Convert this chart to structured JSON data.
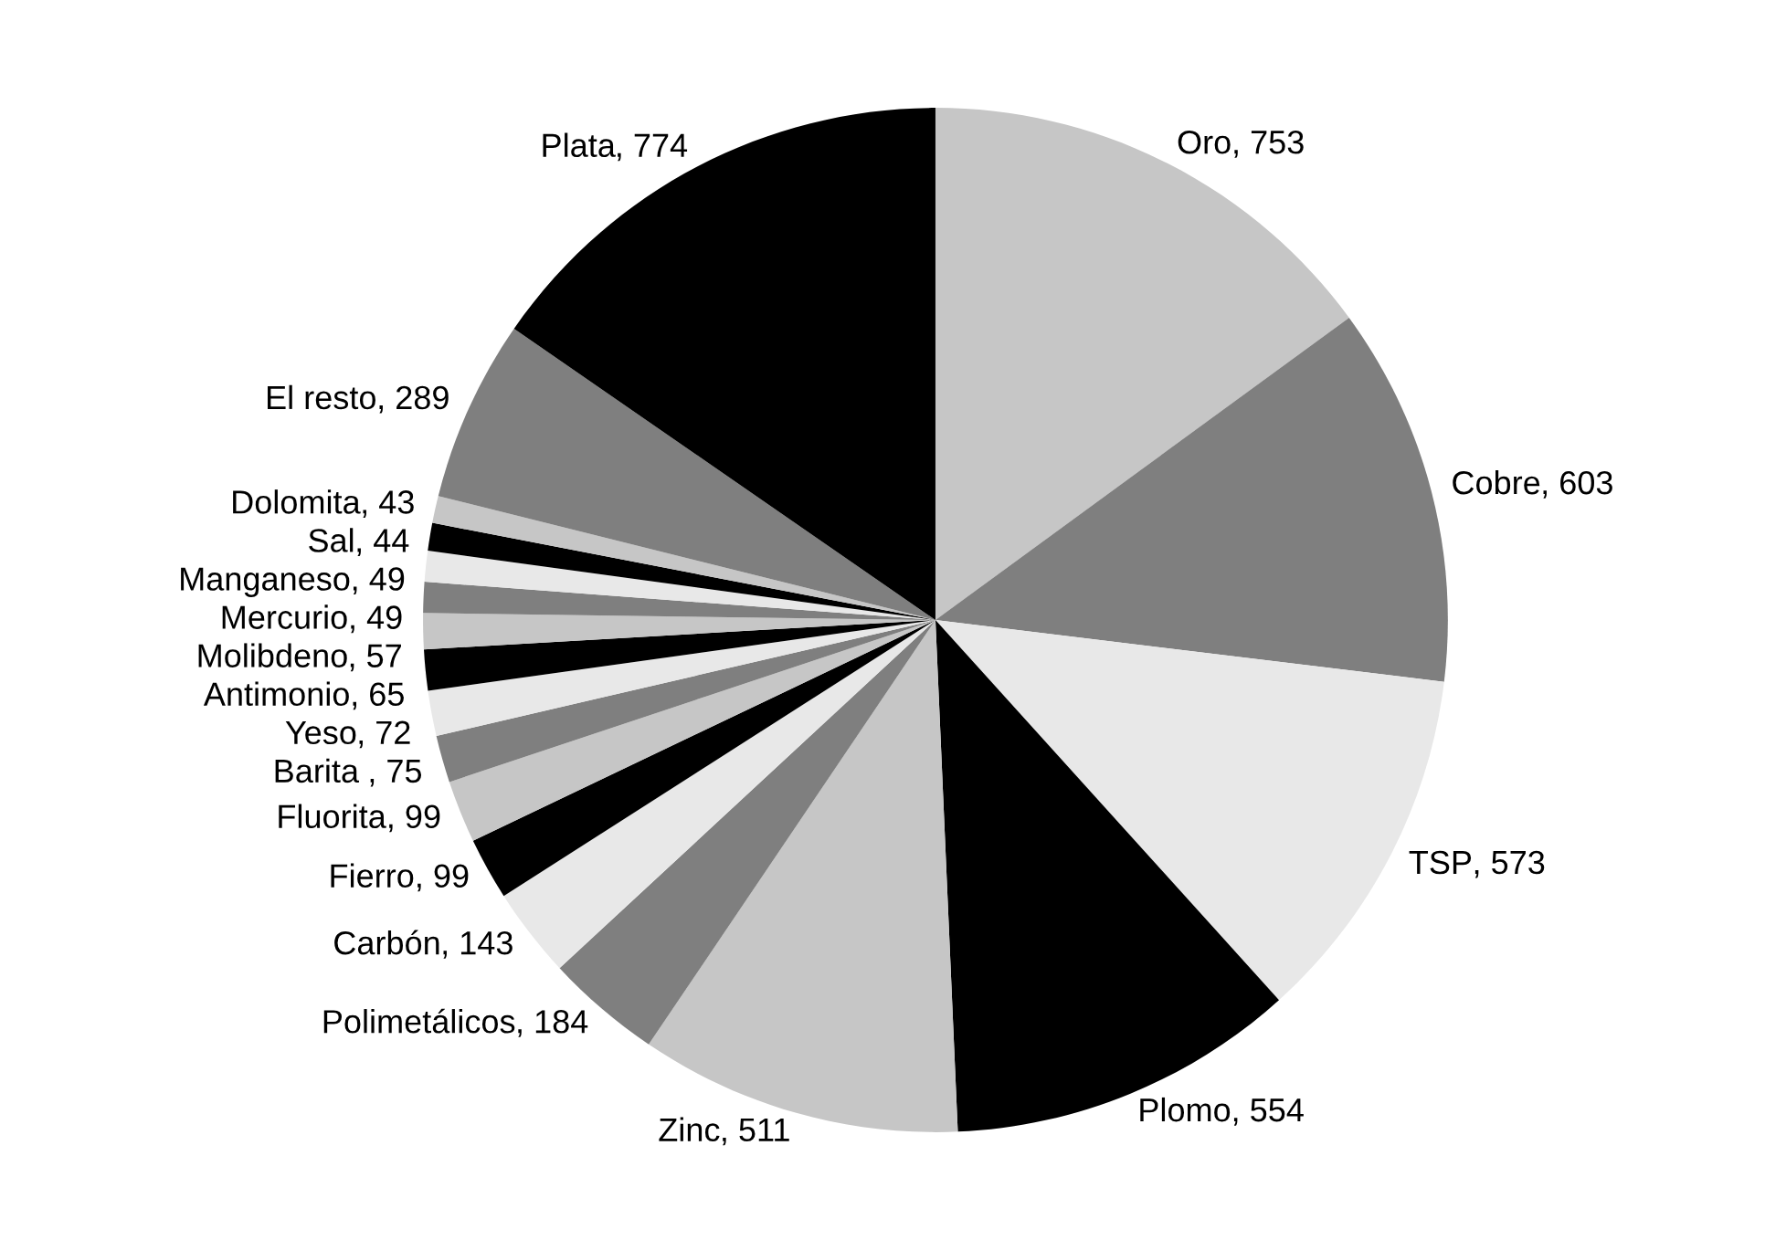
{
  "chart_data": {
    "type": "pie",
    "categories": [
      "Oro",
      "Cobre",
      "TSP",
      "Plomo",
      "Zinc",
      "Polimetálicos",
      "Carbón",
      "Fierro",
      "Fluorita",
      "Barita ",
      "Yeso",
      "Antimonio",
      "Molibdeno",
      "Mercurio",
      "Manganeso",
      "Sal",
      "Dolomita",
      "El resto",
      "Plata"
    ],
    "values": [
      753,
      603,
      573,
      554,
      511,
      184,
      143,
      99,
      99,
      75,
      72,
      65,
      57,
      49,
      49,
      44,
      43,
      289,
      774
    ],
    "colors": [
      "#c6c6c6",
      "#7f7f7f",
      "#e8e8e8",
      "#000000",
      "#c6c6c6",
      "#7f7f7f",
      "#e8e8e8",
      "#000000",
      "#c6c6c6",
      "#7f7f7f",
      "#e8e8e8",
      "#000000",
      "#c6c6c6",
      "#7f7f7f",
      "#e8e8e8",
      "#000000",
      "#c6c6c6",
      "#7f7f7f",
      "#000000"
    ],
    "value_labels": [
      ", 753",
      ", 603",
      ", 573",
      ", 554",
      ", 511",
      ", 184",
      ", 143",
      ", 99",
      ", 99",
      ", 75",
      ", 72",
      ", 65",
      ", 57",
      ", 49",
      ", 49",
      ", 44",
      ", 43",
      ", 289",
      ", 774"
    ]
  }
}
